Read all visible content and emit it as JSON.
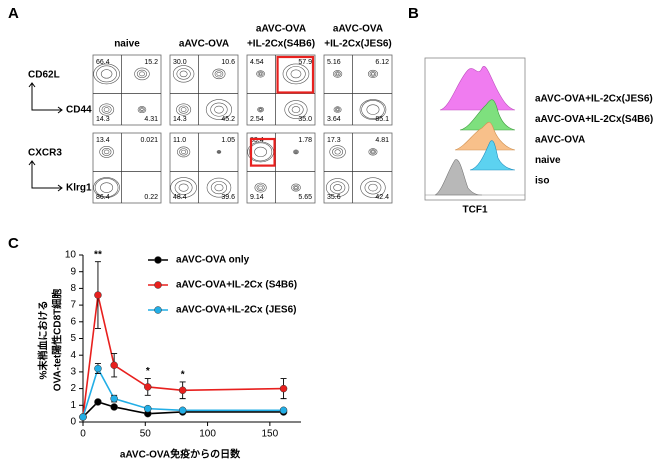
{
  "panel_labels": [
    "A",
    "B",
    "C"
  ],
  "flow": {
    "columns": [
      [
        "naive"
      ],
      [
        "aAVC-OVA"
      ],
      [
        "aAVC-OVA",
        "+IL-2Cx(S4B6)"
      ],
      [
        "aAVC-OVA",
        "+IL-2Cx(JES6)"
      ]
    ],
    "rows": [
      {
        "y_label": "CD62L",
        "x_label": "CD44",
        "quadrants": [
          [
            "66.4",
            "15.2",
            "14.3",
            "4.31"
          ],
          [
            "30.0",
            "10.6",
            "14.3",
            "45.2"
          ],
          [
            "4.54",
            "57.9",
            "2.54",
            "35.0"
          ],
          [
            "5.16",
            "6.12",
            "3.64",
            "85.1"
          ]
        ]
      },
      {
        "y_label": "CXCR3",
        "x_label": "Klrg1",
        "quadrants": [
          [
            "13.4",
            "0.021",
            "86.4",
            "0.22"
          ],
          [
            "11.0",
            "1.05",
            "48.4",
            "39.6"
          ],
          [
            "83.4",
            "1.78",
            "9.14",
            "5.65"
          ],
          [
            "17.3",
            "4.81",
            "35.6",
            "42.4"
          ]
        ]
      }
    ]
  },
  "histogram": {
    "x_label": "TCF1",
    "series": [
      {
        "name": "aAVC-OVA+IL-2Cx(JES6)",
        "color": "#f07cf0"
      },
      {
        "name": "aAVC-OVA+IL-2Cx(S4B6)",
        "color": "#7ee07e"
      },
      {
        "name": "aAVC-OVA",
        "color": "#f8c08a"
      },
      {
        "name": "naive",
        "color": "#5cd2f0"
      },
      {
        "name": "iso",
        "color": "#b8b8b8"
      }
    ]
  },
  "chart_data": {
    "type": "line",
    "x_label": "aAVC-OVA免疫からの日数",
    "y_label": [
      "%末梢血における",
      "OVA-tet陽性CD8T細胞"
    ],
    "x": [
      0,
      12,
      25,
      52,
      80,
      161
    ],
    "xlim": [
      0,
      175
    ],
    "xticks": [
      0,
      50,
      100,
      150
    ],
    "ylim": [
      0,
      10
    ],
    "yticks": [
      0,
      1,
      2,
      3,
      4,
      5,
      6,
      7,
      8,
      9,
      10
    ],
    "series": [
      {
        "name": "aAVC-OVA only",
        "color": "#000000",
        "values": [
          0.3,
          1.2,
          0.9,
          0.5,
          0.6,
          0.6
        ],
        "errors": [
          0.05,
          0.1,
          0.1,
          0.05,
          0.05,
          0.05
        ]
      },
      {
        "name": "aAVC-OVA+IL-2Cx (S4B6)",
        "color": "#e8201e",
        "values": [
          0.3,
          7.6,
          3.4,
          2.1,
          1.9,
          2.0
        ],
        "errors": [
          0.05,
          2.0,
          0.7,
          0.5,
          0.5,
          0.6
        ]
      },
      {
        "name": "aAVC-OVA+IL-2Cx (JES6)",
        "color": "#22aee6",
        "values": [
          0.3,
          3.2,
          1.4,
          0.8,
          0.7,
          0.7
        ],
        "errors": [
          0.05,
          0.3,
          0.2,
          0.1,
          0.1,
          0.1
        ]
      }
    ],
    "annotations": [
      {
        "text": "**",
        "x": 12
      },
      {
        "text": "*",
        "x": 52
      },
      {
        "text": "*",
        "x": 80
      }
    ]
  }
}
